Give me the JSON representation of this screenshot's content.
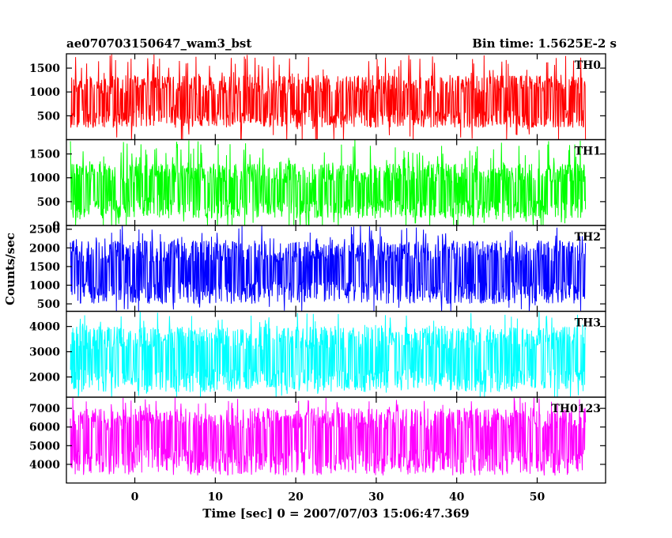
{
  "header": {
    "title": "ae070703150647_wam3_bst",
    "bin_time": "Bin time: 1.5625E-2 s"
  },
  "chart_data": {
    "type": "line",
    "xlabel": "Time [sec] 0 = 2007/07/03 15:06:47.369",
    "ylabel": "Counts/sec",
    "xlim": [
      -8.5,
      58.5
    ],
    "x_range_data": [
      -8,
      56
    ],
    "bin_time_s": 0.015625,
    "x_ticks": [
      0,
      10,
      20,
      30,
      40,
      50
    ],
    "x_tick_labels": [
      "0",
      "10",
      "20",
      "30",
      "40",
      "50"
    ],
    "colors": {
      "TH0": "#ff0000",
      "TH1": "#00ff00",
      "TH2": "#0000ff",
      "TH3": "#00ffff",
      "TH0123": "#ff00ff"
    },
    "panels": [
      {
        "name": "TH0",
        "ylim": [
          0,
          1800
        ],
        "y_ticks": [
          500,
          1000,
          1500
        ],
        "y_tick_labels": [
          "500",
          "1000",
          "1500"
        ],
        "mean": 750,
        "low": 250,
        "high": 1350,
        "peak": 1800,
        "segments": [
          {
            "x": [
              -8,
              0
            ],
            "mean": 760
          },
          {
            "x": [
              0,
              5
            ],
            "mean": 950
          },
          {
            "x": [
              5,
              18
            ],
            "mean": 720
          },
          {
            "x": [
              18,
              56
            ],
            "mean": 790
          }
        ]
      },
      {
        "name": "TH1",
        "ylim": [
          0,
          1800
        ],
        "y_ticks": [
          0,
          500,
          1000,
          1500
        ],
        "y_tick_labels": [
          "0",
          "500",
          "1000",
          "1500"
        ],
        "mean": 700,
        "low": 150,
        "high": 1300,
        "peak": 1800,
        "segments": [
          {
            "x": [
              -8,
              0
            ],
            "mean": 700
          },
          {
            "x": [
              0,
              5
            ],
            "mean": 880
          },
          {
            "x": [
              5,
              56
            ],
            "mean": 720
          }
        ]
      },
      {
        "name": "TH2",
        "ylim": [
          300,
          2600
        ],
        "y_ticks": [
          500,
          1000,
          1500,
          2000,
          2500
        ],
        "y_tick_labels": [
          "500",
          "1000",
          "1500",
          "2000",
          "2500"
        ],
        "mean": 1350,
        "low": 500,
        "high": 2200,
        "peak": 2600,
        "segments": [
          {
            "x": [
              -8,
              56
            ],
            "mean": 1350
          }
        ]
      },
      {
        "name": "TH3",
        "ylim": [
          1200,
          4600
        ],
        "y_ticks": [
          2000,
          3000,
          4000
        ],
        "y_tick_labels": [
          "2000",
          "3000",
          "4000"
        ],
        "mean": 2700,
        "low": 1400,
        "high": 4000,
        "peak": 4600,
        "segments": [
          {
            "x": [
              -8,
              56
            ],
            "mean": 2700
          }
        ]
      },
      {
        "name": "TH0123",
        "ylim": [
          3000,
          7600
        ],
        "y_ticks": [
          4000,
          5000,
          6000,
          7000
        ],
        "y_tick_labels": [
          "4000",
          "5000",
          "6000",
          "7000"
        ],
        "mean": 5300,
        "low": 3400,
        "high": 7000,
        "peak": 7600,
        "segments": [
          {
            "x": [
              -8,
              0
            ],
            "mean": 5300
          },
          {
            "x": [
              0,
              5
            ],
            "mean": 5800
          },
          {
            "x": [
              5,
              56
            ],
            "mean": 5400
          }
        ]
      }
    ]
  }
}
